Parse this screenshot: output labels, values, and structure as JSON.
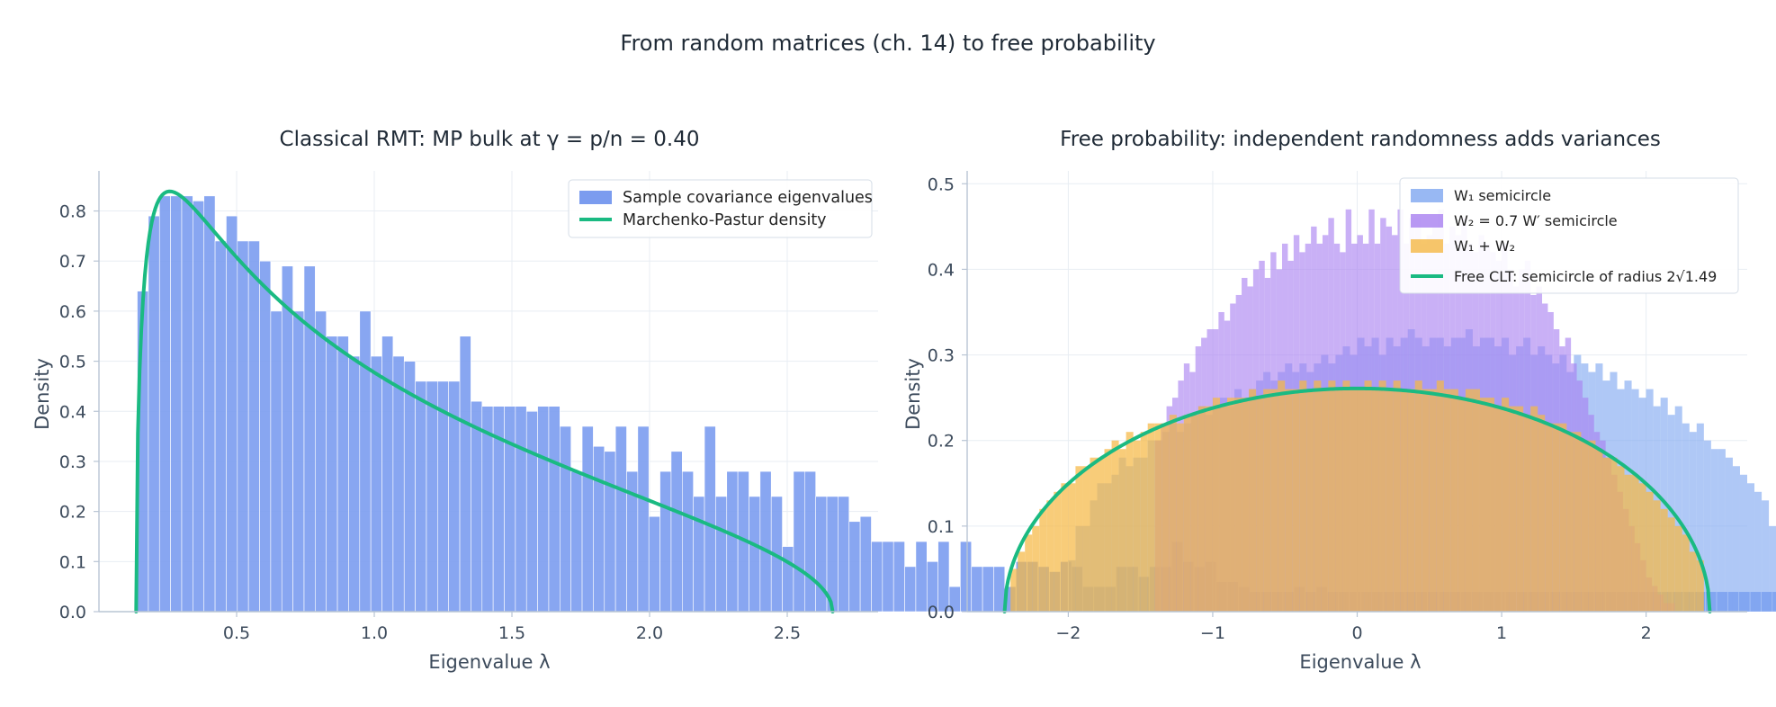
{
  "suptitle": "From random matrices (ch. 14) to free probability",
  "chart_data": [
    {
      "type": "bar",
      "title": "Classical RMT: MP bulk at γ = p/n = 0.40",
      "xlabel": "Eigenvalue λ",
      "ylabel": "Density",
      "xlim": [
        0.0,
        2.83
      ],
      "ylim": [
        0.0,
        0.88
      ],
      "xticks": [
        0.5,
        1.0,
        1.5,
        2.0,
        2.5
      ],
      "yticks": [
        0.0,
        0.1,
        0.2,
        0.3,
        0.4,
        0.5,
        0.6,
        0.7,
        0.8
      ],
      "grid": true,
      "legend_position": "top-right",
      "colors": {
        "hist": "#7b9cef",
        "curve": "#1aba82"
      },
      "series": [
        {
          "name": "Sample covariance eigenvalues",
          "kind": "histogram",
          "bin_start": 0.139,
          "bin_width": 0.0404,
          "values": [
            0.64,
            0.79,
            0.83,
            0.83,
            0.83,
            0.82,
            0.83,
            0.74,
            0.79,
            0.74,
            0.74,
            0.7,
            0.6,
            0.69,
            0.6,
            0.69,
            0.6,
            0.55,
            0.55,
            0.51,
            0.6,
            0.51,
            0.55,
            0.51,
            0.5,
            0.46,
            0.46,
            0.46,
            0.46,
            0.55,
            0.42,
            0.41,
            0.41,
            0.41,
            0.41,
            0.4,
            0.41,
            0.41,
            0.37,
            0.28,
            0.37,
            0.33,
            0.32,
            0.37,
            0.28,
            0.37,
            0.19,
            0.28,
            0.32,
            0.28,
            0.23,
            0.37,
            0.23,
            0.28,
            0.28,
            0.23,
            0.28,
            0.23,
            0.13,
            0.28,
            0.28,
            0.23,
            0.23,
            0.23,
            0.18,
            0.19,
            0.14,
            0.14,
            0.14,
            0.09,
            0.14,
            0.1,
            0.14,
            0.05,
            0.14,
            0.09,
            0.09,
            0.09,
            0.05,
            0.1,
            0.1,
            0.09,
            0.08,
            0.1,
            0.09,
            0.05,
            0.05,
            0.05,
            0.09,
            0.09,
            0.07,
            0.09,
            0.09,
            0.14,
            0.1,
            0.09,
            0.1,
            0.06,
            0.06,
            0.05,
            0.04,
            0.04,
            0.04,
            0.04,
            0.05,
            0.04,
            0.05,
            0.04,
            0.04,
            0.04,
            0.04,
            0.04,
            0.04,
            0.04,
            0.04,
            0.04,
            0.04,
            0.04,
            0.04,
            0.04,
            0.04,
            0.04,
            0.04,
            0.04,
            0.04,
            0.04,
            0.04,
            0.04,
            0.04,
            0.04,
            0.04,
            0.04,
            0.04,
            0.04,
            0.04,
            0.04,
            0.04,
            0.04,
            0.04,
            0.04,
            0.04,
            0.04,
            0.04,
            0.04,
            0.04,
            0.04,
            0.04,
            0.04,
            0.04,
            0.04,
            0.04,
            0.04,
            0.04,
            0.04
          ]
        },
        {
          "name": "Marchenko-Pastur density",
          "kind": "curve",
          "gamma": 0.4,
          "support": [
            0.135,
            2.665
          ]
        }
      ]
    },
    {
      "type": "bar",
      "title": "Free probability: independent randomness adds variances",
      "xlabel": "Eigenvalue λ",
      "ylabel": "Density",
      "xlim": [
        -2.7,
        2.7
      ],
      "ylim": [
        0.0,
        0.515
      ],
      "xticks": [
        -2,
        -1,
        0,
        1,
        2
      ],
      "yticks": [
        0.0,
        0.1,
        0.2,
        0.3,
        0.4,
        0.5
      ],
      "grid": true,
      "legend_position": "top-right",
      "colors": {
        "w1": "#7ea6f0",
        "w2": "#a87ff0",
        "sum": "#f5b845",
        "curve": "#1aba82"
      },
      "series": [
        {
          "name": "W₁ semicircle",
          "kind": "histogram",
          "bin_start": -2.0,
          "bin_width": 0.05,
          "values": [
            0.06,
            0.1,
            0.1,
            0.13,
            0.15,
            0.15,
            0.16,
            0.18,
            0.17,
            0.18,
            0.18,
            0.2,
            0.2,
            0.21,
            0.22,
            0.21,
            0.22,
            0.23,
            0.24,
            0.23,
            0.24,
            0.25,
            0.24,
            0.26,
            0.25,
            0.26,
            0.27,
            0.28,
            0.27,
            0.28,
            0.29,
            0.28,
            0.29,
            0.28,
            0.29,
            0.3,
            0.29,
            0.3,
            0.31,
            0.3,
            0.32,
            0.31,
            0.32,
            0.3,
            0.32,
            0.31,
            0.32,
            0.33,
            0.32,
            0.31,
            0.32,
            0.32,
            0.31,
            0.32,
            0.32,
            0.33,
            0.31,
            0.32,
            0.32,
            0.31,
            0.32,
            0.3,
            0.31,
            0.32,
            0.3,
            0.31,
            0.3,
            0.29,
            0.3,
            0.28,
            0.3,
            0.29,
            0.28,
            0.29,
            0.27,
            0.28,
            0.26,
            0.27,
            0.26,
            0.25,
            0.26,
            0.24,
            0.25,
            0.23,
            0.24,
            0.22,
            0.21,
            0.22,
            0.2,
            0.19,
            0.19,
            0.18,
            0.17,
            0.16,
            0.15,
            0.14,
            0.13,
            0.1,
            0.12,
            0.05
          ]
        },
        {
          "name": "W₂ = 0.7 W′ semicircle",
          "kind": "histogram",
          "bin_start": -1.4,
          "bin_width": 0.04,
          "values": [
            0.2,
            0.22,
            0.24,
            0.25,
            0.27,
            0.29,
            0.28,
            0.31,
            0.32,
            0.33,
            0.33,
            0.35,
            0.34,
            0.36,
            0.37,
            0.39,
            0.38,
            0.4,
            0.41,
            0.39,
            0.42,
            0.4,
            0.43,
            0.41,
            0.44,
            0.42,
            0.43,
            0.45,
            0.43,
            0.44,
            0.46,
            0.43,
            0.42,
            0.47,
            0.43,
            0.44,
            0.43,
            0.47,
            0.43,
            0.46,
            0.45,
            0.44,
            0.47,
            0.43,
            0.46,
            0.46,
            0.43,
            0.44,
            0.45,
            0.47,
            0.43,
            0.45,
            0.44,
            0.46,
            0.43,
            0.42,
            0.44,
            0.43,
            0.42,
            0.41,
            0.43,
            0.4,
            0.38,
            0.4,
            0.41,
            0.37,
            0.38,
            0.36,
            0.35,
            0.33,
            0.31,
            0.32,
            0.29,
            0.27,
            0.25,
            0.23,
            0.21,
            0.2,
            0.18,
            0.16,
            0.14,
            0.12,
            0.1,
            0.08,
            0.06,
            0.04,
            0.03,
            0.02,
            0.01,
            0.01
          ]
        },
        {
          "name": "W₁ + W₂",
          "kind": "histogram",
          "bin_start": -2.4,
          "bin_width": 0.05,
          "values": [
            0.05,
            0.07,
            0.09,
            0.1,
            0.12,
            0.13,
            0.14,
            0.15,
            0.15,
            0.17,
            0.17,
            0.18,
            0.18,
            0.19,
            0.2,
            0.19,
            0.21,
            0.2,
            0.21,
            0.22,
            0.22,
            0.22,
            0.23,
            0.22,
            0.23,
            0.23,
            0.24,
            0.24,
            0.25,
            0.24,
            0.25,
            0.25,
            0.25,
            0.26,
            0.25,
            0.26,
            0.26,
            0.27,
            0.26,
            0.26,
            0.27,
            0.26,
            0.27,
            0.26,
            0.27,
            0.26,
            0.27,
            0.26,
            0.26,
            0.27,
            0.26,
            0.27,
            0.26,
            0.27,
            0.26,
            0.26,
            0.27,
            0.26,
            0.26,
            0.27,
            0.26,
            0.26,
            0.25,
            0.26,
            0.26,
            0.25,
            0.25,
            0.24,
            0.25,
            0.24,
            0.24,
            0.23,
            0.24,
            0.23,
            0.22,
            0.22,
            0.22,
            0.21,
            0.21,
            0.2,
            0.2,
            0.19,
            0.18,
            0.18,
            0.17,
            0.16,
            0.16,
            0.15,
            0.14,
            0.13,
            0.12,
            0.11,
            0.1,
            0.09,
            0.07,
            0.06
          ]
        },
        {
          "name": "Free CLT: semicircle of radius 2√1.49",
          "kind": "curve",
          "radius": 2.441
        }
      ]
    }
  ]
}
